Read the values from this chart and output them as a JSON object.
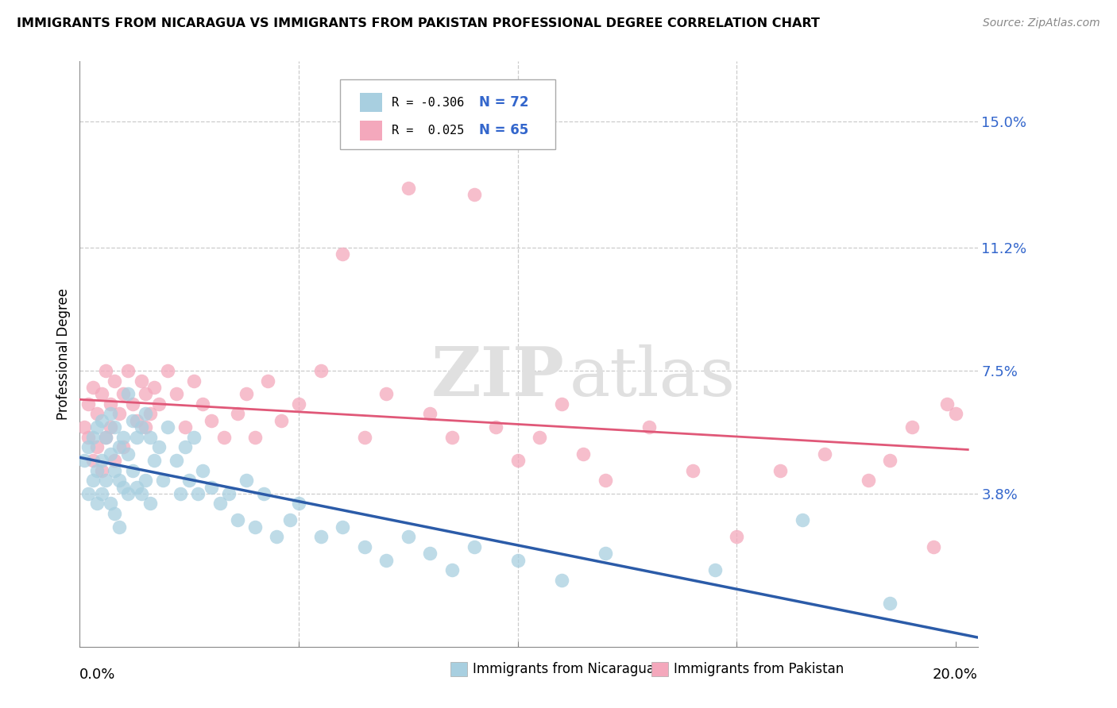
{
  "title": "IMMIGRANTS FROM NICARAGUA VS IMMIGRANTS FROM PAKISTAN PROFESSIONAL DEGREE CORRELATION CHART",
  "source": "Source: ZipAtlas.com",
  "ylabel": "Professional Degree",
  "right_yticks": [
    "15.0%",
    "11.2%",
    "7.5%",
    "3.8%"
  ],
  "right_ytick_vals": [
    0.15,
    0.112,
    0.075,
    0.038
  ],
  "xlim": [
    0.0,
    0.205
  ],
  "ylim": [
    -0.008,
    0.168
  ],
  "color_nicaragua": "#a8cfe0",
  "color_pakistan": "#f4a8bc",
  "color_line_nicaragua": "#2b5ba8",
  "color_line_pakistan": "#e05878",
  "watermark_zip": "ZIP",
  "watermark_atlas": "atlas",
  "watermark_color": "#e0e0e0",
  "nicaragua_x": [
    0.001,
    0.002,
    0.002,
    0.003,
    0.003,
    0.004,
    0.004,
    0.004,
    0.005,
    0.005,
    0.005,
    0.006,
    0.006,
    0.007,
    0.007,
    0.007,
    0.008,
    0.008,
    0.008,
    0.009,
    0.009,
    0.009,
    0.01,
    0.01,
    0.011,
    0.011,
    0.011,
    0.012,
    0.012,
    0.013,
    0.013,
    0.014,
    0.014,
    0.015,
    0.015,
    0.016,
    0.016,
    0.017,
    0.018,
    0.019,
    0.02,
    0.022,
    0.023,
    0.024,
    0.025,
    0.026,
    0.027,
    0.028,
    0.03,
    0.032,
    0.034,
    0.036,
    0.038,
    0.04,
    0.042,
    0.045,
    0.048,
    0.05,
    0.055,
    0.06,
    0.065,
    0.07,
    0.075,
    0.08,
    0.085,
    0.09,
    0.1,
    0.11,
    0.12,
    0.145,
    0.165,
    0.185
  ],
  "nicaragua_y": [
    0.048,
    0.052,
    0.038,
    0.055,
    0.042,
    0.058,
    0.045,
    0.035,
    0.06,
    0.048,
    0.038,
    0.055,
    0.042,
    0.062,
    0.05,
    0.035,
    0.058,
    0.045,
    0.032,
    0.052,
    0.042,
    0.028,
    0.055,
    0.04,
    0.068,
    0.05,
    0.038,
    0.06,
    0.045,
    0.055,
    0.04,
    0.058,
    0.038,
    0.062,
    0.042,
    0.055,
    0.035,
    0.048,
    0.052,
    0.042,
    0.058,
    0.048,
    0.038,
    0.052,
    0.042,
    0.055,
    0.038,
    0.045,
    0.04,
    0.035,
    0.038,
    0.03,
    0.042,
    0.028,
    0.038,
    0.025,
    0.03,
    0.035,
    0.025,
    0.028,
    0.022,
    0.018,
    0.025,
    0.02,
    0.015,
    0.022,
    0.018,
    0.012,
    0.02,
    0.015,
    0.03,
    0.005
  ],
  "pakistan_x": [
    0.001,
    0.002,
    0.002,
    0.003,
    0.003,
    0.004,
    0.004,
    0.005,
    0.005,
    0.006,
    0.006,
    0.007,
    0.007,
    0.008,
    0.008,
    0.009,
    0.01,
    0.01,
    0.011,
    0.012,
    0.013,
    0.014,
    0.015,
    0.015,
    0.016,
    0.017,
    0.018,
    0.02,
    0.022,
    0.024,
    0.026,
    0.028,
    0.03,
    0.033,
    0.036,
    0.038,
    0.04,
    0.043,
    0.046,
    0.05,
    0.055,
    0.06,
    0.065,
    0.07,
    0.075,
    0.08,
    0.085,
    0.09,
    0.095,
    0.1,
    0.105,
    0.11,
    0.115,
    0.12,
    0.13,
    0.14,
    0.15,
    0.16,
    0.17,
    0.18,
    0.185,
    0.19,
    0.195,
    0.198,
    0.2
  ],
  "pakistan_y": [
    0.058,
    0.065,
    0.055,
    0.07,
    0.048,
    0.062,
    0.052,
    0.068,
    0.045,
    0.075,
    0.055,
    0.065,
    0.058,
    0.072,
    0.048,
    0.062,
    0.068,
    0.052,
    0.075,
    0.065,
    0.06,
    0.072,
    0.058,
    0.068,
    0.062,
    0.07,
    0.065,
    0.075,
    0.068,
    0.058,
    0.072,
    0.065,
    0.06,
    0.055,
    0.062,
    0.068,
    0.055,
    0.072,
    0.06,
    0.065,
    0.075,
    0.11,
    0.055,
    0.068,
    0.13,
    0.062,
    0.055,
    0.128,
    0.058,
    0.048,
    0.055,
    0.065,
    0.05,
    0.042,
    0.058,
    0.045,
    0.025,
    0.045,
    0.05,
    0.042,
    0.048,
    0.058,
    0.022,
    0.065,
    0.062
  ]
}
